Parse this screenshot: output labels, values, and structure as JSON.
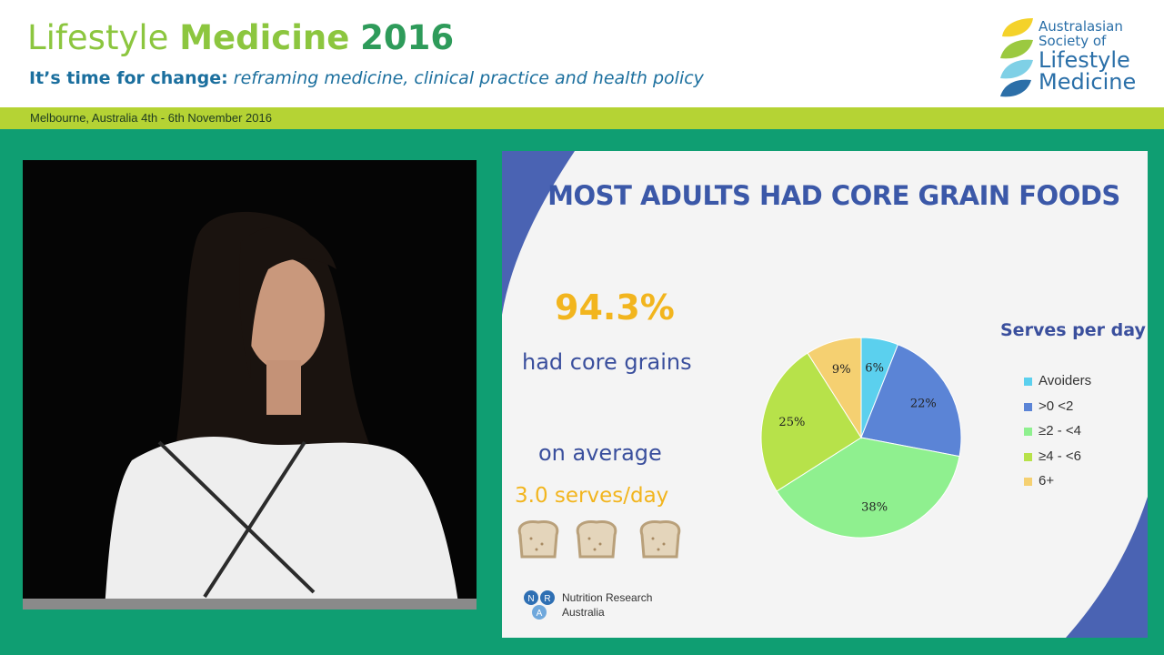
{
  "header": {
    "title_word1": "Lifestyle",
    "title_word2": "Medicine",
    "title_year": "2016",
    "subtitle_lead": "It’s time for change:",
    "subtitle_rest": "reframing medicine, clinical practice and health policy",
    "banner": "Melbourne, Australia 4th - 6th November 2016",
    "logo_lines": [
      "Australasian",
      "Society of",
      "Lifestyle",
      "Medicine"
    ]
  },
  "slide": {
    "title": "MOST ADULTS HAD CORE GRAIN FOODS",
    "big_percent": "94.3%",
    "core_text": "had core grains",
    "average_text": "on average",
    "serves_text": "3.0 serves/day",
    "nra_lines": [
      "Nutrition Research",
      "Australia"
    ],
    "nra_badge_letters": [
      "N",
      "R",
      "A"
    ]
  },
  "colors": {
    "accent_blue": "#3b58a8",
    "accent_gold": "#f2b51e",
    "banner_green": "#b5d334",
    "stage_green": "#0f9e72"
  },
  "chart_data": {
    "type": "pie",
    "title": "Serves per day",
    "legend_position": "right",
    "categories": [
      "Avoiders",
      ">0 <2",
      "≥2 - <4",
      "≥4 - <6",
      "6+"
    ],
    "values": [
      6,
      22,
      38,
      25,
      9
    ],
    "labels": [
      "6%",
      "22%",
      "38%",
      "25%",
      "9%"
    ],
    "colors": [
      "#5bd0ee",
      "#5b84d6",
      "#8ff08f",
      "#b7e24a",
      "#f5d071"
    ]
  }
}
